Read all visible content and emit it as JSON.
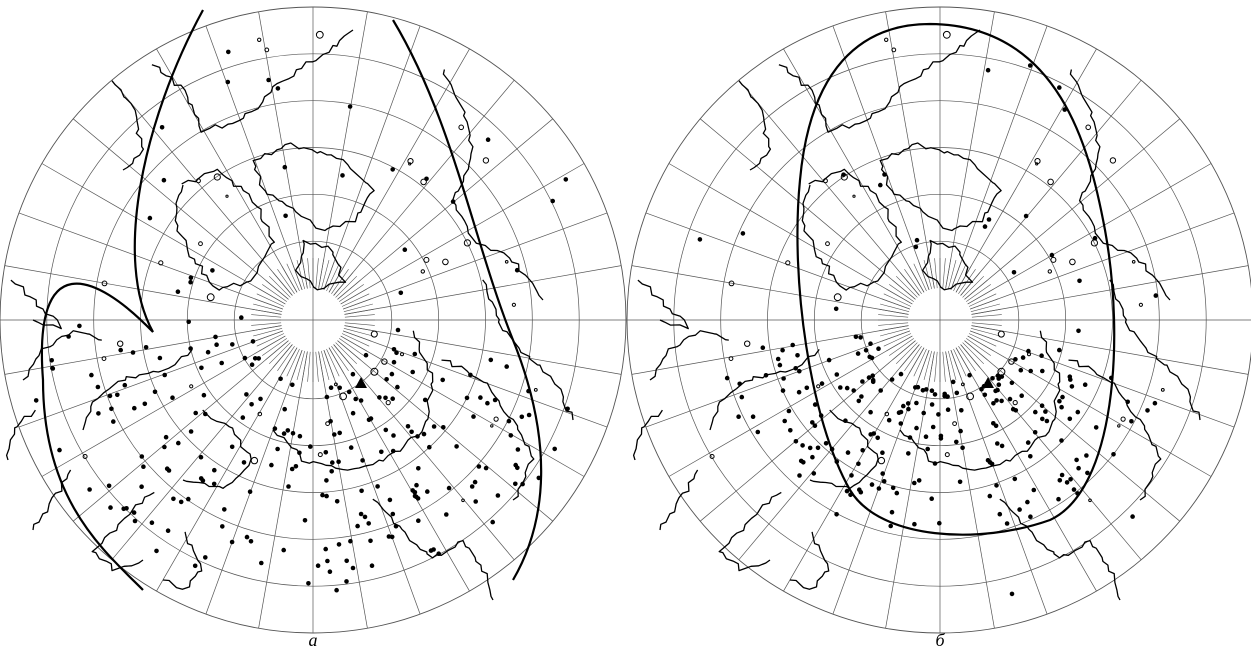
{
  "colors": {
    "background": "#ffffff",
    "grid": "#555555",
    "coast": "#000000",
    "boundary": "#000000",
    "points": "#000000"
  },
  "panels": [
    {
      "id": "a",
      "label": "а",
      "marker": "triangle",
      "boundary": "meridional",
      "stations_sector": "south",
      "station_count": 240
    },
    {
      "id": "b",
      "label": "б",
      "marker": "triangle",
      "boundary": "closed-oval",
      "stations_sector": "south",
      "station_count": 230
    }
  ],
  "graticule": {
    "meridian_count": 36,
    "parallel_rings": 6
  }
}
